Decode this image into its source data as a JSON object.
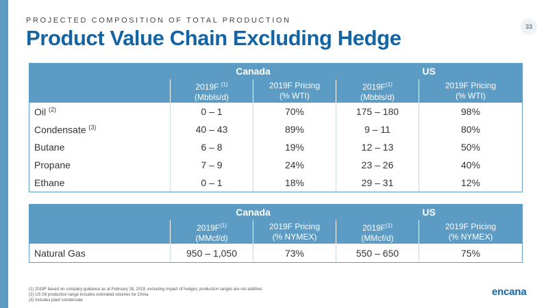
{
  "slide": {
    "kicker": "PROJECTED COMPOSITION OF TOTAL PRODUCTION",
    "title": "Product Value Chain Excluding Hedge",
    "page_number": "33",
    "logo": "encana"
  },
  "colors": {
    "header_bg": "#5b9bc4",
    "title": "#1464a3",
    "left_bar": "#5b9bc4"
  },
  "oil_table": {
    "countries": [
      "Canada",
      "US"
    ],
    "subheaders": [
      {
        "line1": "2019F",
        "sup": "(1)",
        "line2": "(Mbbls/d)"
      },
      {
        "line1": "2019F Pricing",
        "sup": "",
        "line2": "(% WTI)"
      },
      {
        "line1": "2019F",
        "sup": "(1)",
        "line2": "(Mbbls/d)"
      },
      {
        "line1": "2019F Pricing",
        "sup": "",
        "line2": "(% WTI)"
      }
    ],
    "rows": [
      {
        "product": "Oil",
        "note": "(2)",
        "cells": [
          "0 – 1",
          "70%",
          "175 – 180",
          "98%"
        ]
      },
      {
        "product": "Condensate",
        "note": "(3)",
        "cells": [
          "40 – 43",
          "89%",
          "9 – 11",
          "80%"
        ]
      },
      {
        "product": "Butane",
        "note": "",
        "cells": [
          "6 – 8",
          "19%",
          "12 – 13",
          "50%"
        ]
      },
      {
        "product": "Propane",
        "note": "",
        "cells": [
          "7 – 9",
          "24%",
          "23 – 26",
          "40%"
        ]
      },
      {
        "product": "Ethane",
        "note": "",
        "cells": [
          "0 – 1",
          "18%",
          "29 – 31",
          "12%"
        ]
      }
    ]
  },
  "gas_table": {
    "countries": [
      "Canada",
      "US"
    ],
    "subheaders": [
      {
        "line1": "2019F",
        "sup": "(1)",
        "line2": "(MMcf/d)"
      },
      {
        "line1": "2019F Pricing",
        "sup": "",
        "line2": "(% NYMEX)"
      },
      {
        "line1": "2019F",
        "sup": "(1)",
        "line2": "(MMcf/d)"
      },
      {
        "line1": "2019F Pricing",
        "sup": "",
        "line2": "(% NYMEX)"
      }
    ],
    "rows": [
      {
        "product": "Natural Gas",
        "note": "",
        "cells": [
          "950 – 1,050",
          "73%",
          "550 – 650",
          "75%"
        ]
      }
    ]
  },
  "footnotes": [
    "(1) 2019F based on company guidance as at February 28, 2019, excluding impact of hedges; production ranges are not additive;",
    "(2) US Oil production range includes estimated volumes for China",
    "(3) Includes plant condensate"
  ]
}
